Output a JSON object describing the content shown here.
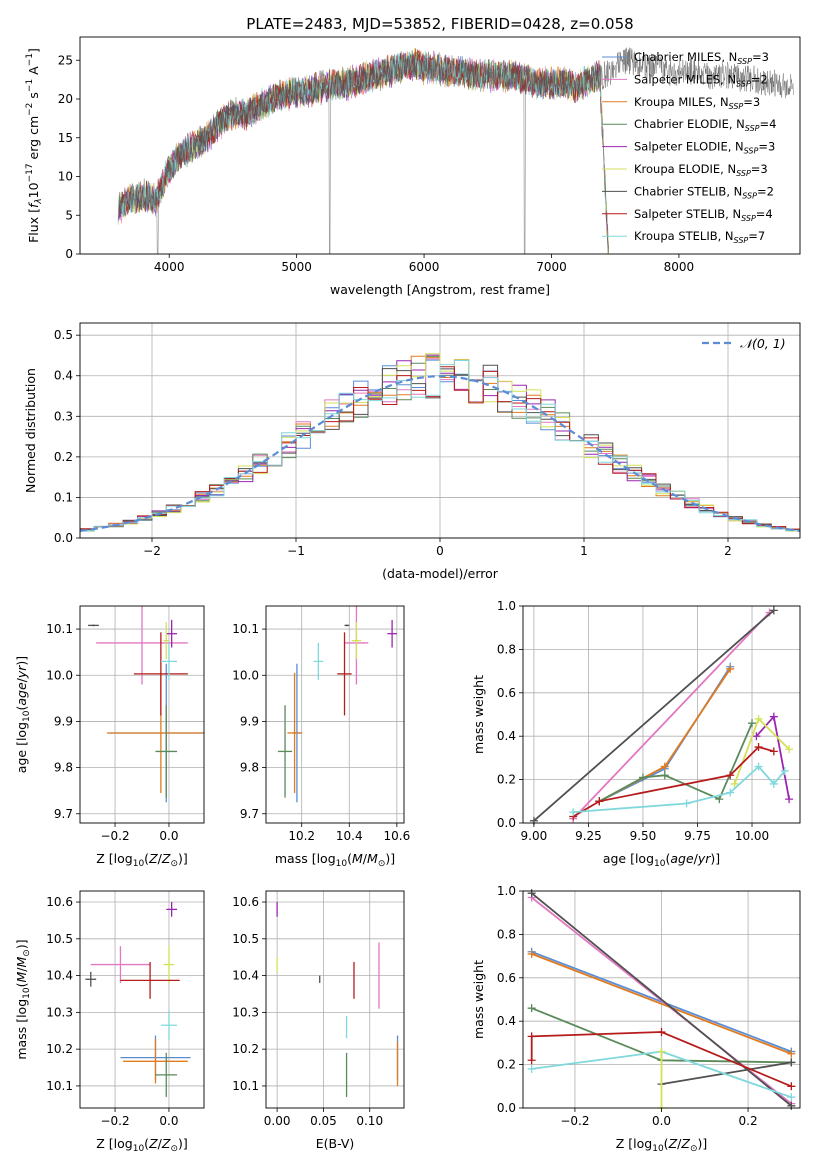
{
  "figure": {
    "title": "PLATE=2483, MJD=53852, FIBERID=0428, z=0.058"
  },
  "colors": [
    "#5b8dd6",
    "#e377c2",
    "#e07b1f",
    "#5a8a5a",
    "#9b27b0",
    "#d4e157",
    "#505050",
    "#b71c1c",
    "#80d8dc"
  ],
  "chart_data": [
    {
      "id": "spectrum",
      "type": "line",
      "title": "PLATE=2483, MJD=53852, FIBERID=0428, z=0.058",
      "xlabel": "wavelength [Angstrom, rest frame]",
      "ylabel": "Flux [f_λ 10^-17 erg cm^-2 s^-1 A^-1]",
      "xlim": [
        3300,
        8950
      ],
      "ylim": [
        0,
        28
      ],
      "xticks": [
        4000,
        5000,
        6000,
        7000,
        8000
      ],
      "yticks": [
        0,
        5,
        10,
        15,
        20,
        25
      ],
      "grid": false,
      "legend": "top-right",
      "series": [
        {
          "name": "Chabrier MILES, N_SSP=3"
        },
        {
          "name": "Salpeter MILES, N_SSP=2"
        },
        {
          "name": "Kroupa MILES, N_SSP=3"
        },
        {
          "name": "Chabrier ELODIE, N_SSP=4"
        },
        {
          "name": "Salpeter ELODIE, N_SSP=3"
        },
        {
          "name": "Kroupa ELODIE, N_SSP=3"
        },
        {
          "name": "Chabrier STELIB, N_SSP=2"
        },
        {
          "name": "Salpeter STELIB, N_SSP=4"
        },
        {
          "name": "Kroupa STELIB, N_SSP=7"
        }
      ],
      "continuum": {
        "x": [
          3600,
          3700,
          3800,
          3900,
          4000,
          4100,
          4200,
          4300,
          4400,
          4500,
          4600,
          4700,
          4800,
          4900,
          5000,
          5100,
          5200,
          5300,
          5400,
          5500,
          5600,
          5700,
          5800,
          5900,
          6000,
          6100,
          6200,
          6300,
          6400,
          6500,
          6600,
          6700,
          6800,
          6900,
          7000,
          7100,
          7200,
          7300,
          7400,
          7500,
          7600,
          7700,
          7800,
          7900,
          8000,
          8100,
          8200,
          8300,
          8400,
          8500,
          8600,
          8700,
          8800,
          8900
        ],
        "y": [
          6,
          7,
          7.5,
          7,
          11,
          13,
          14,
          15,
          17,
          18,
          18,
          19,
          20,
          20.5,
          21,
          21,
          21.5,
          22,
          22,
          22.5,
          23,
          23.5,
          24,
          24.5,
          24,
          24,
          23.5,
          23.5,
          23,
          23,
          23,
          23,
          22.5,
          22,
          22,
          22,
          21.5,
          22.5,
          23,
          24,
          25,
          24.5,
          24,
          23.5,
          23.5,
          23.5,
          23,
          23,
          23,
          22.5,
          22.5,
          22,
          22,
          21.5
        ]
      }
    },
    {
      "id": "residuals",
      "type": "histogram",
      "xlabel": "(data-model)/error",
      "ylabel": "Normed distribution",
      "xlim": [
        -2.5,
        2.5
      ],
      "ylim": [
        0,
        0.53
      ],
      "xticks": [
        -2,
        -1,
        0,
        1,
        2
      ],
      "yticks": [
        0.0,
        0.1,
        0.2,
        0.3,
        0.4,
        0.5
      ],
      "grid": true,
      "legend": "top-right",
      "legend_label": "𝒩(0, 1)",
      "bin_width": 0.1,
      "reference": {
        "name": "𝒩(0, 1)",
        "style": "dashed",
        "color": "#5b8dd6"
      }
    },
    {
      "id": "age_vs_Z",
      "type": "scatter",
      "xlabel": "Z [log10(Z/Z⊙)]",
      "ylabel": "age [log10(age/yr)]",
      "xlim": [
        -0.33,
        0.13
      ],
      "ylim": [
        9.68,
        10.15
      ],
      "xticks": [
        -0.2,
        0.0
      ],
      "yticks": [
        9.7,
        9.8,
        9.9,
        10.0,
        10.1
      ],
      "grid": true,
      "points": [
        {
          "x": -0.01,
          "y": 9.875,
          "xerr": 0.21,
          "yerr": 0.15,
          "c": 0
        },
        {
          "x": -0.1,
          "y": 10.07,
          "xerr": 0.17,
          "yerr": 0.09,
          "c": 1
        },
        {
          "x": -0.03,
          "y": 9.875,
          "xerr": 0.2,
          "yerr": 0.13,
          "c": 2
        },
        {
          "x": -0.01,
          "y": 9.835,
          "xerr": 0.04,
          "yerr": 0.1,
          "c": 3
        },
        {
          "x": 0.01,
          "y": 10.09,
          "xerr": 0.02,
          "yerr": 0.03,
          "c": 4
        },
        {
          "x": -0.01,
          "y": 10.075,
          "xerr": 0.01,
          "yerr": 0.04,
          "c": 5
        },
        {
          "x": -0.28,
          "y": 10.108,
          "xerr": 0.02,
          "yerr": 0.002,
          "c": 6
        },
        {
          "x": -0.03,
          "y": 10.003,
          "xerr": 0.1,
          "yerr": 0.09,
          "c": 7
        },
        {
          "x": 0.0,
          "y": 10.03,
          "xerr": 0.03,
          "yerr": 0.04,
          "c": 8
        }
      ]
    },
    {
      "id": "age_vs_mass",
      "type": "scatter",
      "xlabel": "mass [log10(M/M⊙)]",
      "ylabel": "",
      "xlim": [
        10.05,
        10.63
      ],
      "ylim": [
        9.68,
        10.15
      ],
      "xticks": [
        10.2,
        10.4,
        10.6
      ],
      "yticks": [
        9.7,
        9.8,
        9.9,
        10.0,
        10.1
      ],
      "grid": true,
      "points": [
        {
          "x": 10.18,
          "y": 9.875,
          "xerr": 0.02,
          "yerr": 0.15,
          "c": 0
        },
        {
          "x": 10.43,
          "y": 10.07,
          "xerr": 0.05,
          "yerr": 0.09,
          "c": 1
        },
        {
          "x": 10.17,
          "y": 9.875,
          "xerr": 0.03,
          "yerr": 0.13,
          "c": 2
        },
        {
          "x": 10.13,
          "y": 9.835,
          "xerr": 0.03,
          "yerr": 0.1,
          "c": 3
        },
        {
          "x": 10.58,
          "y": 10.09,
          "xerr": 0.02,
          "yerr": 0.03,
          "c": 4
        },
        {
          "x": 10.43,
          "y": 10.075,
          "xerr": 0.02,
          "yerr": 0.04,
          "c": 5
        },
        {
          "x": 10.39,
          "y": 10.108,
          "xerr": 0.01,
          "yerr": 0.002,
          "c": 6
        },
        {
          "x": 10.38,
          "y": 10.003,
          "xerr": 0.03,
          "yerr": 0.09,
          "c": 7
        },
        {
          "x": 10.27,
          "y": 10.03,
          "xerr": 0.02,
          "yerr": 0.04,
          "c": 8
        }
      ]
    },
    {
      "id": "weight_vs_age",
      "type": "line",
      "xlabel": "age [log10(age/yr)]",
      "ylabel": "mass weight",
      "xlim": [
        8.95,
        10.22
      ],
      "ylim": [
        0,
        1.0
      ],
      "xticks": [
        9.0,
        9.25,
        9.5,
        9.75,
        10.0
      ],
      "xticklabels": [
        "9.00",
        "9.25",
        "9.50",
        "9.75",
        "10.00"
      ],
      "yticks": [
        0.0,
        0.2,
        0.4,
        0.6,
        0.8,
        1.0
      ],
      "grid": true,
      "series": [
        {
          "c": 0,
          "x": [
            9.3,
            9.6,
            9.9
          ],
          "y": [
            0.1,
            0.25,
            0.72
          ]
        },
        {
          "c": 1,
          "x": [
            9.18,
            10.08
          ],
          "y": [
            0.02,
            0.97
          ]
        },
        {
          "c": 2,
          "x": [
            9.3,
            9.6,
            9.9
          ],
          "y": [
            0.1,
            0.26,
            0.71
          ]
        },
        {
          "c": 3,
          "x": [
            9.3,
            9.5,
            9.6,
            9.85,
            10.0
          ],
          "y": [
            0.1,
            0.21,
            0.22,
            0.11,
            0.46
          ]
        },
        {
          "c": 4,
          "x": [
            10.02,
            10.1,
            10.17
          ],
          "y": [
            0.4,
            0.49,
            0.11
          ]
        },
        {
          "c": 5,
          "x": [
            9.92,
            10.03,
            10.17
          ],
          "y": [
            0.18,
            0.48,
            0.34
          ]
        },
        {
          "c": 6,
          "x": [
            9.0,
            10.1
          ],
          "y": [
            0.01,
            0.98
          ]
        },
        {
          "c": 7,
          "x": [
            9.18,
            9.3,
            9.9,
            10.03,
            10.1
          ],
          "y": [
            0.03,
            0.1,
            0.22,
            0.35,
            0.33
          ]
        },
        {
          "c": 8,
          "x": [
            9.18,
            9.7,
            9.9,
            10.03,
            10.1,
            10.15
          ],
          "y": [
            0.05,
            0.09,
            0.14,
            0.26,
            0.18,
            0.24
          ]
        }
      ]
    },
    {
      "id": "mass_vs_Z",
      "type": "scatter",
      "xlabel": "Z [log10(Z/Z⊙)]",
      "ylabel": "mass [log10(M/M⊙)]",
      "xlim": [
        -0.33,
        0.13
      ],
      "ylim": [
        10.04,
        10.63
      ],
      "xticks": [
        -0.2,
        0.0
      ],
      "yticks": [
        10.1,
        10.2,
        10.3,
        10.4,
        10.5,
        10.6
      ],
      "grid": true,
      "points": [
        {
          "x": -0.05,
          "y": 10.177,
          "xerr": 0.13,
          "yerr": 0.06,
          "c": 0
        },
        {
          "x": -0.18,
          "y": 10.43,
          "xerr": 0.11,
          "yerr": 0.05,
          "c": 1
        },
        {
          "x": -0.05,
          "y": 10.167,
          "xerr": 0.12,
          "yerr": 0.06,
          "c": 2
        },
        {
          "x": -0.01,
          "y": 10.13,
          "xerr": 0.04,
          "yerr": 0.06,
          "c": 3
        },
        {
          "x": 0.01,
          "y": 10.58,
          "xerr": 0.02,
          "yerr": 0.02,
          "c": 4
        },
        {
          "x": 0.0,
          "y": 10.43,
          "xerr": 0.02,
          "yerr": 0.05,
          "c": 5
        },
        {
          "x": -0.29,
          "y": 10.39,
          "xerr": 0.02,
          "yerr": 0.02,
          "c": 6
        },
        {
          "x": -0.07,
          "y": 10.387,
          "xerr": 0.11,
          "yerr": 0.05,
          "c": 7
        },
        {
          "x": 0.0,
          "y": 10.265,
          "xerr": 0.03,
          "yerr": 0.04,
          "c": 8
        }
      ]
    },
    {
      "id": "mass_vs_ebv",
      "type": "scatter",
      "xlabel": "E(B-V)",
      "ylabel": "",
      "xlim": [
        -0.012,
        0.137
      ],
      "ylim": [
        10.04,
        10.63
      ],
      "xticks": [
        0.0,
        0.05,
        0.1
      ],
      "xticklabels": [
        "0.00",
        "0.05",
        "0.10"
      ],
      "yticks": [
        10.1,
        10.2,
        10.3,
        10.4,
        10.5,
        10.6
      ],
      "grid": true,
      "points": [
        {
          "x": 0.13,
          "y": 10.177,
          "yerr": 0.06,
          "c": 0
        },
        {
          "x": 0.11,
          "y": 10.4,
          "yerr": 0.09,
          "c": 1
        },
        {
          "x": 0.13,
          "y": 10.16,
          "yerr": 0.06,
          "c": 2
        },
        {
          "x": 0.075,
          "y": 10.13,
          "yerr": 0.06,
          "c": 3
        },
        {
          "x": 0.0,
          "y": 10.58,
          "yerr": 0.02,
          "c": 4
        },
        {
          "x": 0.0,
          "y": 10.43,
          "yerr": 0.02,
          "c": 5
        },
        {
          "x": 0.046,
          "y": 10.39,
          "yerr": 0.01,
          "c": 6
        },
        {
          "x": 0.083,
          "y": 10.387,
          "yerr": 0.05,
          "c": 7
        },
        {
          "x": 0.075,
          "y": 10.26,
          "yerr": 0.03,
          "c": 8
        }
      ]
    },
    {
      "id": "weight_vs_Z",
      "type": "line",
      "xlabel": "Z [log10(Z/Z⊙)]",
      "ylabel": "mass weight",
      "xlim": [
        -0.32,
        0.32
      ],
      "ylim": [
        0,
        1.0
      ],
      "xticks": [
        -0.2,
        0.0,
        0.2
      ],
      "yticks": [
        0.0,
        0.2,
        0.4,
        0.6,
        0.8,
        1.0
      ],
      "grid": true,
      "series": [
        {
          "c": 0,
          "x": [
            -0.3,
            0.3
          ],
          "y": [
            0.72,
            0.26
          ]
        },
        {
          "c": 1,
          "x": [
            -0.3,
            0.3
          ],
          "y": [
            0.97,
            0.02
          ]
        },
        {
          "c": 2,
          "x": [
            -0.3,
            0.3
          ],
          "y": [
            0.71,
            0.25
          ]
        },
        {
          "c": 3,
          "x": [
            -0.3,
            0.0,
            0.3
          ],
          "y": [
            0.46,
            0.22,
            0.21
          ]
        },
        {
          "c": 6,
          "x": [
            -0.3,
            0.3
          ],
          "y": [
            0.99,
            0.01
          ]
        },
        {
          "c": 6,
          "x": [
            0.0,
            0.3
          ],
          "y": [
            0.11,
            0.21
          ]
        },
        {
          "c": 7,
          "x": [
            -0.3,
            -0.3,
            0.0,
            0.3
          ],
          "y": [
            0.22,
            0.33,
            0.35,
            0.1
          ]
        },
        {
          "c": 8,
          "x": [
            -0.3,
            0.0,
            0.3
          ],
          "y": [
            0.18,
            0.26,
            0.05
          ]
        },
        {
          "c": 5,
          "x": [
            0.0,
            0.0
          ],
          "y": [
            0.0,
            0.26
          ]
        }
      ]
    }
  ]
}
